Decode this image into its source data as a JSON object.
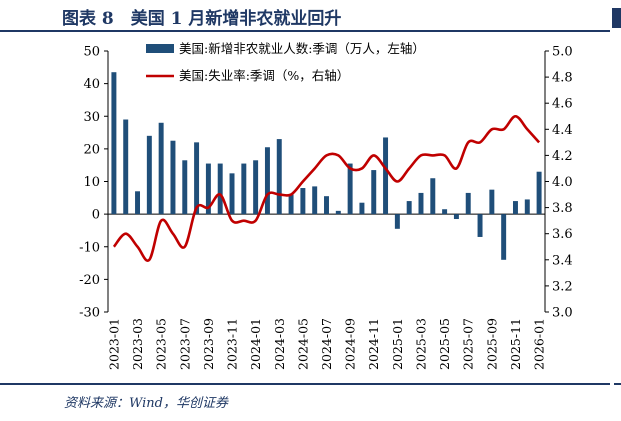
{
  "header": {
    "title": "图表 8　美国 1 月新增非农就业回升"
  },
  "footer": {
    "source": "资料来源：Wind，华创证券"
  },
  "colors": {
    "bar": "#1f4e79",
    "line": "#c00000",
    "frame": "#1f3864"
  },
  "chart_data": {
    "type": "bar",
    "categories": [
      "2023-01",
      "2023-02",
      "2023-03",
      "2023-04",
      "2023-05",
      "2023-06",
      "2023-07",
      "2023-08",
      "2023-09",
      "2023-10",
      "2023-11",
      "2023-12",
      "2024-01",
      "2024-02",
      "2024-03",
      "2024-04",
      "2024-05",
      "2024-06",
      "2024-07",
      "2024-08",
      "2024-09",
      "2024-10",
      "2024-11",
      "2024-12",
      "2025-01",
      "2025-02",
      "2025-03",
      "2025-04",
      "2025-05",
      "2025-06",
      "2025-07",
      "2025-08",
      "2025-09",
      "2025-10",
      "2025-11",
      "2025-12",
      "2026-01"
    ],
    "x_tick_labels": [
      "2023-01",
      "2023-03",
      "2023-05",
      "2023-07",
      "2023-09",
      "2023-11",
      "2024-01",
      "2024-03",
      "2024-05",
      "2024-07",
      "2024-09",
      "2024-11",
      "2025-01",
      "2025-03",
      "2025-05",
      "2025-07",
      "2025-09",
      "2025-11",
      "2026-01"
    ],
    "series": [
      {
        "name": "美国:新增非农就业人数:季调（万人，左轴）",
        "type": "bar",
        "axis": "left",
        "values": [
          43.5,
          29,
          7,
          24,
          28,
          22.5,
          16.5,
          22,
          15.5,
          15.5,
          12.5,
          15.5,
          16.5,
          20.5,
          23,
          6,
          8,
          8.5,
          5.5,
          1,
          15.5,
          3.5,
          13.5,
          23.5,
          -4.5,
          4,
          6.5,
          11,
          1.5,
          -1.5,
          6.5,
          -7,
          7.5,
          -14,
          4,
          4.5,
          13
        ]
      },
      {
        "name": "美国:失业率:季调（%，右轴）",
        "type": "line",
        "axis": "right",
        "values": [
          3.5,
          3.6,
          3.5,
          3.4,
          3.7,
          3.6,
          3.5,
          3.8,
          3.8,
          3.9,
          3.7,
          3.7,
          3.7,
          3.9,
          3.9,
          3.9,
          4.0,
          4.1,
          4.2,
          4.2,
          4.1,
          4.1,
          4.2,
          4.1,
          4.0,
          4.1,
          4.2,
          4.2,
          4.2,
          4.1,
          4.3,
          4.3,
          4.4,
          4.4,
          4.5,
          4.4,
          4.3
        ]
      }
    ],
    "yleft": {
      "lim": [
        -30,
        50
      ],
      "ticks": [
        50,
        40,
        30,
        20,
        10,
        0,
        -10,
        -20,
        -30
      ]
    },
    "yright": {
      "lim": [
        3.0,
        5.0
      ],
      "ticks": [
        "5.0",
        "4.8",
        "4.6",
        "4.4",
        "4.2",
        "4.0",
        "3.8",
        "3.6",
        "3.4",
        "3.2",
        "3.0"
      ]
    },
    "legend": "top-center"
  }
}
